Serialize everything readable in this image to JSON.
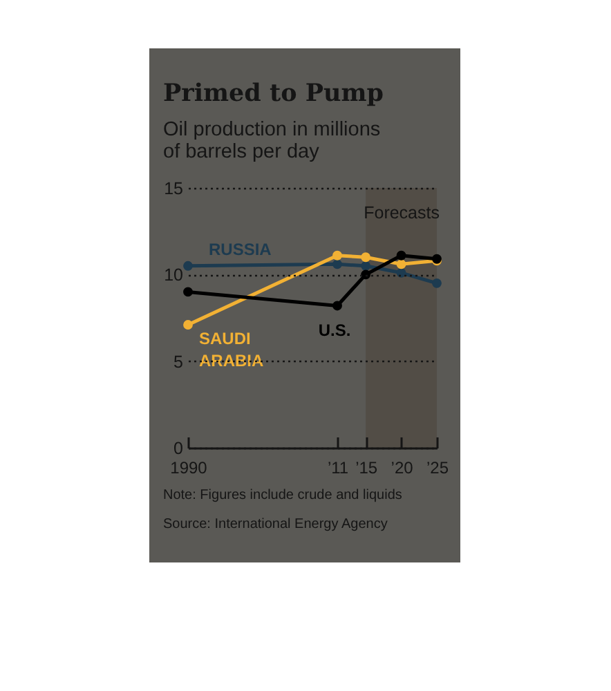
{
  "chart_data": {
    "type": "line",
    "title": "Primed to Pump",
    "subtitle": "Oil production in millions of barrels per day",
    "x": [
      1990,
      2011,
      2015,
      2020,
      2025
    ],
    "xlim": [
      1990,
      2025
    ],
    "xticks": [
      1990,
      {
        "value": 2011,
        "label": "’11"
      },
      {
        "value": 2015,
        "label": "’15"
      },
      {
        "value": 2020,
        "label": "’20"
      },
      {
        "value": 2025,
        "label": "’25"
      }
    ],
    "ylim": [
      0,
      15
    ],
    "yticks": [
      0,
      5,
      10,
      15
    ],
    "grid": "y",
    "marker": "circle",
    "series": [
      {
        "name": "RUSSIA",
        "color": "#1d3b50",
        "values": [
          10.5,
          10.6,
          10.5,
          10.1,
          9.5
        ]
      },
      {
        "name": "SAUDI ARABIA",
        "color": "#f2b134",
        "values": [
          7.1,
          11.1,
          11.0,
          10.6,
          10.8
        ]
      },
      {
        "name": "U.S.",
        "color": "#000000",
        "values": [
          9.0,
          8.2,
          10.0,
          11.1,
          10.9
        ]
      }
    ],
    "bands": [
      {
        "axis": "x",
        "from": 2015,
        "to": 2025,
        "label": "Forecasts",
        "color": "#524d46"
      }
    ],
    "annotations": [
      "Note: Figures include crude and liquids",
      "Source: International Energy Agency"
    ]
  }
}
